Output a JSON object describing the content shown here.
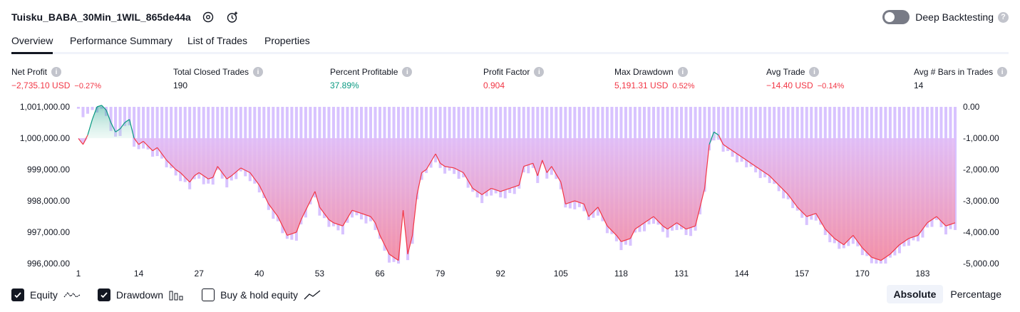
{
  "header": {
    "title": "Tuisku_BABA_30Min_1WIL_865de44a",
    "deep_backtesting_label": "Deep Backtesting",
    "deep_backtesting_on": false
  },
  "tabs": [
    {
      "label": "Overview",
      "active": true
    },
    {
      "label": "Performance Summary",
      "active": false
    },
    {
      "label": "List of Trades",
      "active": false
    },
    {
      "label": "Properties",
      "active": false
    }
  ],
  "stats": {
    "net_profit": {
      "label": "Net Profit",
      "value": "−2,735.10 USD",
      "pct": "−0.27%"
    },
    "total_closed_trades": {
      "label": "Total Closed Trades",
      "value": "190"
    },
    "percent_profitable": {
      "label": "Percent Profitable",
      "value": "37.89%"
    },
    "profit_factor": {
      "label": "Profit Factor",
      "value": "0.904"
    },
    "max_drawdown": {
      "label": "Max Drawdown",
      "value": "5,191.31 USD",
      "pct": "0.52%"
    },
    "avg_trade": {
      "label": "Avg Trade",
      "value": "−14.40 USD",
      "pct": "−0.14%"
    },
    "avg_bars": {
      "label": "Avg # Bars in Trades",
      "value": "14"
    }
  },
  "chart_data": {
    "type": "area",
    "left_axis_ticks": [
      "1,001,000.00",
      "1,000,000.00",
      "999,000.00",
      "998,000.00",
      "997,000.00",
      "996,000.00"
    ],
    "right_axis_ticks": [
      "0.00",
      "-1,000.00",
      "-2,000.00",
      "-3,000.00",
      "-4,000.00",
      "-5,000.00"
    ],
    "x_ticks": [
      "1",
      "14",
      "27",
      "40",
      "53",
      "66",
      "79",
      "92",
      "105",
      "118",
      "131",
      "144",
      "157",
      "170",
      "183"
    ],
    "equity_ylim": [
      996000,
      1001000
    ],
    "drawdown_ylim": [
      -5000,
      0
    ],
    "x_range": [
      1,
      190
    ],
    "equity_keypoints": [
      [
        1,
        999990
      ],
      [
        2,
        999800
      ],
      [
        3,
        1000100
      ],
      [
        4,
        1000600
      ],
      [
        5,
        1001000
      ],
      [
        6,
        1001050
      ],
      [
        7,
        1000900
      ],
      [
        8,
        1000500
      ],
      [
        9,
        1000200
      ],
      [
        10,
        1000300
      ],
      [
        11,
        1000500
      ],
      [
        12,
        1000600
      ],
      [
        13,
        1000000
      ],
      [
        14,
        999800
      ],
      [
        15,
        999900
      ],
      [
        17,
        999600
      ],
      [
        18,
        999700
      ],
      [
        20,
        999300
      ],
      [
        22,
        999000
      ],
      [
        23,
        998900
      ],
      [
        25,
        998600
      ],
      [
        26,
        998800
      ],
      [
        27,
        998900
      ],
      [
        29,
        998700
      ],
      [
        30,
        998750
      ],
      [
        31,
        999100
      ],
      [
        33,
        998700
      ],
      [
        34,
        998800
      ],
      [
        36,
        999050
      ],
      [
        38,
        998900
      ],
      [
        40,
        998500
      ],
      [
        42,
        997900
      ],
      [
        44,
        997500
      ],
      [
        46,
        996900
      ],
      [
        48,
        997000
      ],
      [
        49,
        997400
      ],
      [
        51,
        998000
      ],
      [
        52,
        998300
      ],
      [
        53,
        997800
      ],
      [
        55,
        997400
      ],
      [
        56,
        997300
      ],
      [
        58,
        997200
      ],
      [
        60,
        997700
      ],
      [
        62,
        997600
      ],
      [
        64,
        997500
      ],
      [
        65,
        997300
      ],
      [
        66,
        996900
      ],
      [
        68,
        996300
      ],
      [
        70,
        996100
      ],
      [
        71,
        997700
      ],
      [
        72,
        996300
      ],
      [
        73,
        996900
      ],
      [
        74,
        998200
      ],
      [
        75,
        998900
      ],
      [
        76,
        999000
      ],
      [
        78,
        999500
      ],
      [
        79,
        999200
      ],
      [
        80,
        999100
      ],
      [
        82,
        999050
      ],
      [
        84,
        998900
      ],
      [
        86,
        998400
      ],
      [
        88,
        998200
      ],
      [
        90,
        998400
      ],
      [
        92,
        998300
      ],
      [
        94,
        998400
      ],
      [
        96,
        998500
      ],
      [
        97,
        999100
      ],
      [
        99,
        999200
      ],
      [
        100,
        998800
      ],
      [
        101,
        999300
      ],
      [
        102,
        998900
      ],
      [
        103,
        999100
      ],
      [
        105,
        998600
      ],
      [
        106,
        997900
      ],
      [
        108,
        998000
      ],
      [
        110,
        997900
      ],
      [
        111,
        997500
      ],
      [
        113,
        997800
      ],
      [
        115,
        997200
      ],
      [
        117,
        996900
      ],
      [
        118,
        996700
      ],
      [
        120,
        996800
      ],
      [
        121,
        997100
      ],
      [
        123,
        997300
      ],
      [
        125,
        997500
      ],
      [
        127,
        997200
      ],
      [
        128,
        997100
      ],
      [
        130,
        997300
      ],
      [
        132,
        997100
      ],
      [
        134,
        997200
      ],
      [
        136,
        998400
      ],
      [
        137,
        999800
      ],
      [
        138,
        1000200
      ],
      [
        139,
        1000100
      ],
      [
        140,
        999800
      ],
      [
        142,
        999600
      ],
      [
        144,
        999400
      ],
      [
        146,
        999200
      ],
      [
        148,
        999000
      ],
      [
        150,
        998800
      ],
      [
        152,
        998500
      ],
      [
        154,
        998200
      ],
      [
        156,
        997800
      ],
      [
        158,
        997500
      ],
      [
        160,
        997600
      ],
      [
        162,
        997100
      ],
      [
        164,
        996800
      ],
      [
        166,
        996600
      ],
      [
        168,
        996900
      ],
      [
        170,
        996500
      ],
      [
        172,
        996200
      ],
      [
        174,
        996100
      ],
      [
        176,
        996300
      ],
      [
        178,
        996600
      ],
      [
        180,
        996800
      ],
      [
        182,
        996900
      ],
      [
        184,
        997300
      ],
      [
        186,
        997500
      ],
      [
        188,
        997200
      ],
      [
        190,
        997300
      ]
    ],
    "colors": {
      "equity_up": "#089981",
      "equity_down": "#f23645",
      "drawdown_bar": "#d1b8ff",
      "fill_down_top": "#e1bdf7",
      "fill_down_bottom": "#f48aa0",
      "fill_up": "#b2e3d4"
    }
  },
  "legend": {
    "equity": {
      "label": "Equity",
      "checked": true
    },
    "drawdown": {
      "label": "Drawdown",
      "checked": true
    },
    "buy_hold": {
      "label": "Buy & hold equity",
      "checked": false
    }
  },
  "modes": [
    {
      "label": "Absolute",
      "active": true
    },
    {
      "label": "Percentage",
      "active": false
    }
  ]
}
